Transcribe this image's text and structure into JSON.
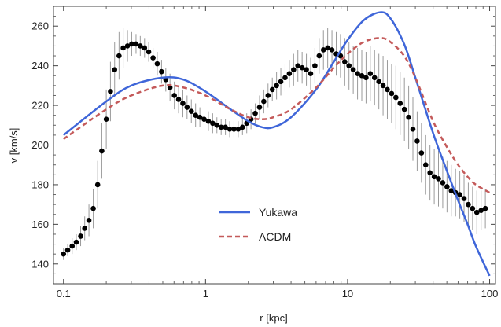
{
  "chart_data": {
    "type": "scatter",
    "xlabel": "r [kpc]",
    "ylabel": "v [km/s]",
    "xscale": "log",
    "xlim": [
      0.085,
      110
    ],
    "ylim": [
      130,
      270
    ],
    "xticks": [
      0.1,
      1,
      10,
      100
    ],
    "xtick_labels": [
      "0.1",
      "1",
      "10",
      "100"
    ],
    "yticks": [
      140,
      160,
      180,
      200,
      220,
      240,
      260
    ],
    "ytick_labels": [
      "140",
      "160",
      "180",
      "200",
      "220",
      "240",
      "260"
    ],
    "grid": false,
    "legend_position": "lower-center",
    "colors": {
      "yukawa": "#3f66d9",
      "lcdm": "#c45a5a",
      "data": "#000000",
      "errorbar": "#9a9a9a"
    },
    "series": [
      {
        "name": "Yukawa",
        "kind": "line",
        "style": "solid",
        "x": [
          0.1,
          0.2,
          0.3,
          0.5,
          0.7,
          1,
          1.5,
          2,
          2.5,
          3,
          4,
          6,
          8,
          10,
          13,
          17,
          20,
          25,
          30,
          40,
          50,
          60,
          70,
          80,
          100
        ],
        "y": [
          205,
          222,
          230,
          234,
          233,
          227,
          218,
          212,
          209,
          209,
          214,
          228,
          242,
          253,
          263,
          267,
          264,
          251,
          234,
          206,
          187,
          172,
          160,
          149,
          134
        ]
      },
      {
        "name": "ΛCDM",
        "kind": "line",
        "style": "dashed",
        "x": [
          0.1,
          0.2,
          0.3,
          0.5,
          0.7,
          1,
          1.5,
          2,
          2.5,
          3,
          4,
          6,
          8,
          10,
          13,
          17,
          20,
          25,
          30,
          40,
          50,
          60,
          70,
          80,
          100
        ],
        "y": [
          203,
          218,
          225,
          230,
          229,
          225,
          218,
          214,
          213,
          214,
          218,
          229,
          239,
          246,
          252,
          254,
          252,
          245,
          234,
          212,
          199,
          190,
          184,
          180,
          176
        ]
      },
      {
        "name": "",
        "kind": "errorbar",
        "x": [
          0.1,
          0.107,
          0.115,
          0.123,
          0.132,
          0.141,
          0.151,
          0.162,
          0.174,
          0.186,
          0.2,
          0.214,
          0.229,
          0.246,
          0.263,
          0.282,
          0.302,
          0.324,
          0.347,
          0.372,
          0.398,
          0.427,
          0.457,
          0.49,
          0.525,
          0.562,
          0.603,
          0.646,
          0.692,
          0.741,
          0.794,
          0.851,
          0.912,
          0.977,
          1.047,
          1.122,
          1.202,
          1.288,
          1.38,
          1.479,
          1.585,
          1.698,
          1.82,
          1.95,
          2.089,
          2.239,
          2.399,
          2.57,
          2.754,
          2.951,
          3.162,
          3.388,
          3.631,
          3.89,
          4.169,
          4.467,
          4.786,
          5.129,
          5.495,
          5.888,
          6.31,
          6.761,
          7.244,
          7.762,
          8.318,
          8.913,
          9.55,
          10.23,
          10.96,
          11.75,
          12.59,
          13.49,
          14.45,
          15.49,
          16.6,
          17.78,
          19.05,
          20.42,
          21.88,
          23.44,
          25.12,
          26.92,
          28.84,
          30.9,
          33.11,
          35.48,
          38.02,
          40.74,
          43.65,
          46.77,
          50.12,
          53.7,
          57.54,
          61.66,
          66.07,
          70.79,
          75.86,
          81.28,
          87.1,
          93.33
        ],
        "y": [
          145,
          147,
          149,
          151,
          154,
          158,
          162,
          168,
          180,
          197,
          213,
          227,
          238,
          245,
          249,
          250,
          251,
          251,
          250,
          249,
          247,
          244,
          241,
          237,
          233,
          229,
          225,
          223,
          221,
          219,
          217,
          215,
          214,
          213,
          212,
          211,
          210,
          209,
          209,
          208,
          208,
          208,
          209,
          211,
          213,
          216,
          219,
          222,
          225,
          228,
          230,
          232,
          234,
          236,
          238,
          240,
          239,
          238,
          236,
          240,
          245,
          248,
          249,
          248,
          246,
          245,
          242,
          240,
          238,
          236,
          235,
          234,
          236,
          234,
          232,
          230,
          228,
          226,
          224,
          221,
          218,
          214,
          208,
          202,
          196,
          190,
          186,
          184,
          183,
          181,
          179,
          177,
          176,
          175,
          173,
          170,
          168,
          166,
          167,
          168
        ],
        "err": [
          3,
          3,
          4,
          4,
          5,
          6,
          8,
          10,
          12,
          14,
          15,
          15,
          14,
          12,
          10,
          8,
          6,
          5,
          5,
          5,
          5,
          5,
          6,
          6,
          6,
          7,
          7,
          7,
          7,
          6,
          6,
          6,
          5,
          5,
          5,
          5,
          4,
          4,
          4,
          4,
          4,
          4,
          4,
          5,
          5,
          5,
          6,
          6,
          6,
          6,
          7,
          7,
          7,
          7,
          8,
          8,
          8,
          8,
          8,
          9,
          9,
          10,
          10,
          10,
          11,
          11,
          12,
          12,
          12,
          13,
          13,
          13,
          14,
          14,
          14,
          15,
          15,
          15,
          16,
          16,
          16,
          16,
          16,
          15,
          15,
          15,
          14,
          14,
          14,
          13,
          13,
          13,
          12,
          12,
          12,
          11,
          11,
          11,
          10,
          10
        ]
      }
    ]
  }
}
